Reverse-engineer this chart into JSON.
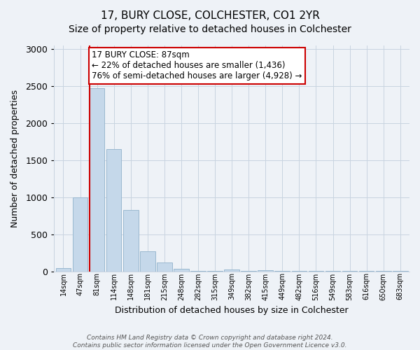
{
  "title": "17, BURY CLOSE, COLCHESTER, CO1 2YR",
  "subtitle": "Size of property relative to detached houses in Colchester",
  "xlabel": "Distribution of detached houses by size in Colchester",
  "ylabel": "Number of detached properties",
  "bar_labels": [
    "14sqm",
    "47sqm",
    "81sqm",
    "114sqm",
    "148sqm",
    "181sqm",
    "215sqm",
    "248sqm",
    "282sqm",
    "315sqm",
    "349sqm",
    "382sqm",
    "415sqm",
    "449sqm",
    "482sqm",
    "516sqm",
    "549sqm",
    "583sqm",
    "616sqm",
    "650sqm",
    "683sqm"
  ],
  "bar_heights": [
    50,
    1000,
    2470,
    1650,
    830,
    270,
    120,
    40,
    5,
    5,
    30,
    5,
    20,
    5,
    5,
    10,
    5,
    5,
    5,
    5,
    5
  ],
  "bar_color": "#c5d8ea",
  "bar_edge_color": "#9ab8d0",
  "ylim": [
    0,
    3050
  ],
  "yticks": [
    0,
    500,
    1000,
    1500,
    2000,
    2500,
    3000
  ],
  "vline_color": "#cc0000",
  "vline_bin": 2,
  "annotation_line1": "17 BURY CLOSE: 87sqm",
  "annotation_line2": "← 22% of detached houses are smaller (1,436)",
  "annotation_line3": "76% of semi-detached houses are larger (4,928) →",
  "annotation_box_color": "#ffffff",
  "annotation_box_edge": "#cc0000",
  "footer_text": "Contains HM Land Registry data © Crown copyright and database right 2024.\nContains public sector information licensed under the Open Government Licence v3.0.",
  "bg_color": "#eef2f7",
  "grid_color": "#c8d4e0",
  "title_fontsize": 11,
  "subtitle_fontsize": 10
}
